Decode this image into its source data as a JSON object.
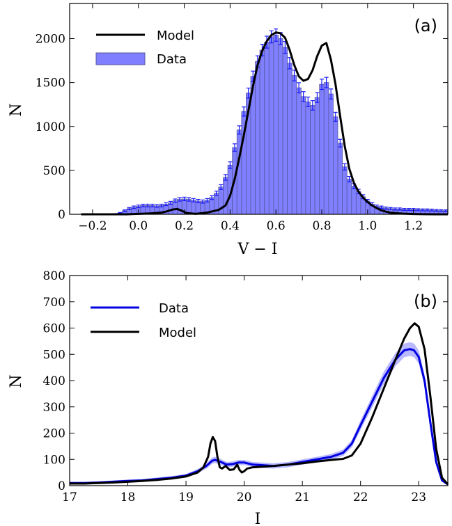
{
  "chart_data": [
    {
      "type": "bar",
      "panel_label": "(a)",
      "xlabel": "V − I",
      "ylabel": "N",
      "xlim": [
        -0.3,
        1.35
      ],
      "ylim": [
        0,
        2400
      ],
      "xticks": [
        "−0.2",
        "0.0",
        "0.2",
        "0.4",
        "0.6",
        "0.8",
        "1.0",
        "1.2"
      ],
      "xtick_values": [
        -0.2,
        0.0,
        0.2,
        0.4,
        0.6,
        0.8,
        1.0,
        1.2
      ],
      "yticks": [
        "0",
        "500",
        "1000",
        "1500",
        "2000"
      ],
      "ytick_values": [
        0,
        500,
        1000,
        1500,
        2000
      ],
      "legend": {
        "position": "top-left",
        "entries": [
          "Model",
          "Data"
        ]
      },
      "colors": {
        "data_fill": "#7f7fff",
        "data_edge": "#5b5b9e",
        "errorbar": "#1a1aff",
        "model": "#000000"
      },
      "series": [
        {
          "name": "Data",
          "kind": "histogram",
          "bin_width": 0.02,
          "x": [
            -0.1,
            -0.08,
            -0.06,
            -0.04,
            -0.02,
            0.0,
            0.02,
            0.04,
            0.06,
            0.08,
            0.1,
            0.12,
            0.14,
            0.16,
            0.18,
            0.2,
            0.22,
            0.24,
            0.26,
            0.28,
            0.3,
            0.32,
            0.34,
            0.36,
            0.38,
            0.4,
            0.42,
            0.44,
            0.46,
            0.48,
            0.5,
            0.52,
            0.54,
            0.56,
            0.58,
            0.6,
            0.62,
            0.64,
            0.66,
            0.68,
            0.7,
            0.72,
            0.74,
            0.76,
            0.78,
            0.8,
            0.82,
            0.84,
            0.86,
            0.88,
            0.9,
            0.92,
            0.94,
            0.96,
            0.98,
            1.0,
            1.02,
            1.04,
            1.06,
            1.08,
            1.1,
            1.12,
            1.14,
            1.16,
            1.18,
            1.2,
            1.22,
            1.24,
            1.26,
            1.28,
            1.3,
            1.32,
            1.34
          ],
          "values": [
            5,
            15,
            40,
            65,
            80,
            90,
            100,
            100,
            100,
            95,
            100,
            115,
            130,
            155,
            170,
            175,
            170,
            160,
            150,
            145,
            160,
            190,
            240,
            310,
            420,
            560,
            760,
            960,
            1170,
            1380,
            1570,
            1740,
            1870,
            1960,
            2020,
            2040,
            2000,
            1900,
            1720,
            1580,
            1440,
            1340,
            1280,
            1240,
            1330,
            1480,
            1500,
            1370,
            1110,
            810,
            540,
            400,
            320,
            260,
            200,
            150,
            115,
            90,
            80,
            70,
            65,
            60,
            60,
            55,
            55,
            55,
            52,
            50,
            50,
            48,
            45,
            42,
            40
          ],
          "errors": [
            3,
            6,
            10,
            12,
            14,
            15,
            15,
            15,
            15,
            15,
            15,
            16,
            17,
            19,
            20,
            20,
            20,
            19,
            19,
            18,
            19,
            21,
            24,
            27,
            32,
            37,
            42,
            47,
            52,
            57,
            60,
            64,
            66,
            68,
            69,
            70,
            69,
            67,
            64,
            61,
            58,
            56,
            55,
            54,
            56,
            59,
            59,
            57,
            51,
            44,
            36,
            31,
            28,
            25,
            22,
            19,
            17,
            15,
            14,
            13,
            12,
            12,
            12,
            11,
            11,
            11,
            11,
            11,
            11,
            11,
            10,
            10,
            10
          ]
        },
        {
          "name": "Model",
          "kind": "line",
          "x": [
            -0.25,
            -0.2,
            -0.15,
            -0.1,
            -0.05,
            0.0,
            0.05,
            0.1,
            0.12,
            0.15,
            0.17,
            0.19,
            0.21,
            0.25,
            0.3,
            0.35,
            0.38,
            0.4,
            0.42,
            0.44,
            0.46,
            0.48,
            0.5,
            0.52,
            0.54,
            0.56,
            0.58,
            0.6,
            0.62,
            0.64,
            0.66,
            0.68,
            0.7,
            0.72,
            0.74,
            0.76,
            0.78,
            0.8,
            0.82,
            0.84,
            0.86,
            0.88,
            0.9,
            0.92,
            0.94,
            0.96,
            0.98,
            1.0,
            1.02,
            1.04,
            1.06,
            1.08,
            1.1,
            1.15,
            1.2,
            1.25,
            1.3,
            1.35
          ],
          "y": [
            0,
            0,
            0,
            0,
            0,
            5,
            10,
            20,
            30,
            55,
            60,
            40,
            15,
            5,
            20,
            50,
            100,
            210,
            400,
            640,
            900,
            1180,
            1460,
            1700,
            1860,
            1970,
            2040,
            2070,
            2060,
            2010,
            1870,
            1700,
            1570,
            1520,
            1540,
            1640,
            1800,
            1920,
            1950,
            1760,
            1480,
            1120,
            780,
            520,
            360,
            260,
            190,
            140,
            100,
            70,
            45,
            30,
            18,
            8,
            3,
            1,
            0,
            0
          ]
        }
      ]
    },
    {
      "type": "line",
      "panel_label": "(b)",
      "xlabel": "I",
      "ylabel": "N",
      "xlim": [
        17,
        23.5
      ],
      "ylim": [
        0,
        800
      ],
      "xticks": [
        "17",
        "18",
        "19",
        "20",
        "21",
        "22",
        "23"
      ],
      "xtick_values": [
        17,
        18,
        19,
        20,
        21,
        22,
        23
      ],
      "yticks": [
        "0",
        "100",
        "200",
        "300",
        "400",
        "500",
        "600",
        "700",
        "800"
      ],
      "ytick_values": [
        0,
        100,
        200,
        300,
        400,
        500,
        600,
        700,
        800
      ],
      "legend": {
        "position": "top-left",
        "entries": [
          "Data",
          "Model"
        ]
      },
      "colors": {
        "data": "#0000e0",
        "band": "#8080ff",
        "model": "#000000"
      },
      "series": [
        {
          "name": "Data",
          "x": [
            17.0,
            17.25,
            17.5,
            17.75,
            18.0,
            18.25,
            18.5,
            18.75,
            19.0,
            19.2,
            19.35,
            19.45,
            19.5,
            19.6,
            19.7,
            19.8,
            19.9,
            20.0,
            20.15,
            20.3,
            20.5,
            20.75,
            21.0,
            21.25,
            21.5,
            21.7,
            21.85,
            22.0,
            22.2,
            22.4,
            22.6,
            22.75,
            22.85,
            22.92,
            23.0,
            23.1,
            23.2,
            23.3,
            23.4,
            23.5
          ],
          "y": [
            10,
            10,
            12,
            15,
            18,
            20,
            25,
            30,
            38,
            55,
            75,
            95,
            98,
            90,
            80,
            82,
            88,
            88,
            80,
            78,
            75,
            80,
            90,
            100,
            110,
            125,
            160,
            230,
            320,
            410,
            480,
            515,
            520,
            515,
            490,
            400,
            240,
            90,
            20,
            5
          ],
          "band": [
            4,
            4,
            4,
            5,
            5,
            5,
            6,
            6,
            7,
            8,
            10,
            12,
            12,
            11,
            10,
            10,
            10,
            10,
            10,
            10,
            10,
            10,
            10,
            10,
            11,
            12,
            14,
            18,
            22,
            24,
            25,
            26,
            26,
            26,
            25,
            22,
            16,
            10,
            5,
            2
          ]
        },
        {
          "name": "Model",
          "x": [
            17.0,
            17.25,
            17.5,
            17.75,
            18.0,
            18.25,
            18.5,
            18.75,
            19.0,
            19.2,
            19.3,
            19.38,
            19.42,
            19.46,
            19.5,
            19.54,
            19.58,
            19.62,
            19.68,
            19.75,
            19.82,
            19.88,
            19.92,
            19.96,
            20.0,
            20.05,
            20.15,
            20.3,
            20.5,
            20.75,
            21.0,
            21.25,
            21.5,
            21.7,
            21.85,
            22.0,
            22.2,
            22.4,
            22.6,
            22.75,
            22.85,
            22.93,
            23.0,
            23.1,
            23.2,
            23.3,
            23.4,
            23.5
          ],
          "y": [
            8,
            8,
            10,
            12,
            15,
            18,
            22,
            27,
            35,
            50,
            70,
            110,
            160,
            185,
            170,
            110,
            70,
            65,
            75,
            60,
            62,
            80,
            60,
            50,
            55,
            65,
            70,
            72,
            75,
            80,
            85,
            92,
            98,
            102,
            115,
            160,
            260,
            370,
            480,
            560,
            600,
            618,
            605,
            520,
            340,
            140,
            30,
            5
          ]
        }
      ]
    }
  ]
}
